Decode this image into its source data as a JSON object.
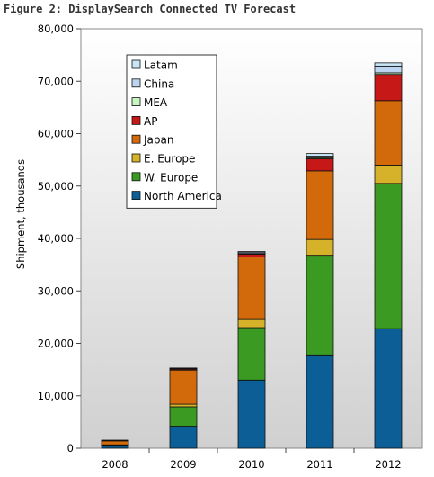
{
  "figure_title": "Figure 2: DisplaySearch Connected TV Forecast",
  "chart_data": {
    "type": "bar",
    "stacked": true,
    "title": "Figure 2: DisplaySearch Connected TV Forecast",
    "xlabel": "",
    "ylabel": "Shipment, thousands",
    "categories": [
      "2008",
      "2009",
      "2010",
      "2011",
      "2012"
    ],
    "ylim": [
      0,
      80000
    ],
    "yticks": [
      0,
      10000,
      20000,
      30000,
      40000,
      50000,
      60000,
      70000,
      80000
    ],
    "ytick_labels": [
      "0",
      "10,000",
      "20,000",
      "30,000",
      "40,000",
      "50,000",
      "60,000",
      "70,000",
      "80,000"
    ],
    "grid": false,
    "legend_position": "top-left",
    "series": [
      {
        "name": "North America",
        "color": "#0b5e96",
        "values": [
          400,
          4200,
          13000,
          17800,
          22800
        ]
      },
      {
        "name": "W. Europe",
        "color": "#3a9a22",
        "values": [
          200,
          3700,
          10000,
          19000,
          27700
        ]
      },
      {
        "name": "E. Europe",
        "color": "#d6b22a",
        "values": [
          50,
          500,
          1700,
          3000,
          3500
        ]
      },
      {
        "name": "Japan",
        "color": "#d2690b",
        "values": [
          800,
          6500,
          11800,
          13100,
          12300
        ]
      },
      {
        "name": "AP",
        "color": "#c71818",
        "values": [
          30,
          200,
          500,
          2300,
          5000
        ]
      },
      {
        "name": "MEA",
        "color": "#c8f5c0",
        "values": [
          10,
          50,
          100,
          200,
          300
        ]
      },
      {
        "name": "China",
        "color": "#bcd4f0",
        "values": [
          20,
          100,
          200,
          300,
          1300
        ]
      },
      {
        "name": "Latam",
        "color": "#c9e6f7",
        "values": [
          10,
          50,
          200,
          500,
          600
        ]
      }
    ],
    "legend_order": [
      "Latam",
      "China",
      "MEA",
      "AP",
      "Japan",
      "E. Europe",
      "W. Europe",
      "North America"
    ]
  }
}
